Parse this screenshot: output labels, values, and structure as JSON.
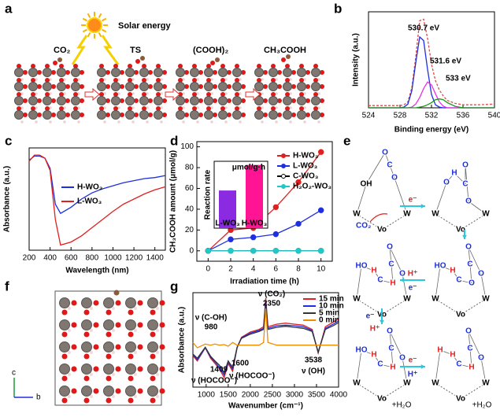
{
  "panel_labels": [
    "a",
    "b",
    "c",
    "d",
    "e",
    "f",
    "g"
  ],
  "scheme": {
    "solar": "Solar energy",
    "stages": [
      "CO₂",
      "TS",
      "(COOH)₂",
      "CH₃COOH"
    ]
  },
  "chart_data": [
    {
      "type": "line",
      "x": [
        524,
        526,
        527,
        528,
        528.5,
        529,
        529.5,
        530,
        530.5,
        531,
        531.5,
        532,
        532.5,
        533,
        533.5,
        534,
        535,
        536,
        538,
        540
      ],
      "series": [
        {
          "color": "#e04848",
          "dash": true,
          "values": [
            3,
            3,
            3,
            3,
            4,
            8,
            27,
            69,
            118,
            120,
            94,
            59,
            37,
            24,
            16,
            10,
            6,
            4,
            4,
            5
          ]
        },
        {
          "color": "#1f2ee0",
          "values": [
            0,
            0,
            0,
            0,
            1,
            5,
            23,
            61,
            96,
            91,
            52,
            18,
            4,
            1,
            0,
            0,
            0,
            0,
            0,
            0
          ]
        },
        {
          "color": "#e632e6",
          "values": [
            0,
            0,
            0,
            0,
            0,
            0,
            1,
            5,
            14,
            26,
            35,
            31,
            19,
            8,
            2,
            0,
            0,
            0,
            0,
            0
          ]
        },
        {
          "color": "#1a9a1a",
          "values": [
            0,
            0,
            0,
            0,
            0,
            0,
            0,
            0,
            1,
            2,
            4,
            7,
            11,
            12,
            11,
            7,
            2,
            0,
            0,
            0
          ]
        }
      ],
      "xlim": [
        524,
        540
      ],
      "xticks": [
        524,
        528,
        532,
        536,
        540
      ],
      "ylim": [
        0,
        130
      ],
      "xlabel": "Binding energy (eV)",
      "ylabel": "Intensity (a.u.)",
      "annotations": [
        "530.7 eV",
        "531.6 eV",
        "533 eV"
      ]
    },
    {
      "type": "line",
      "x": [
        200,
        250,
        300,
        350,
        400,
        450,
        500,
        600,
        700,
        800,
        900,
        1000,
        1100,
        1200,
        1300,
        1400,
        1500
      ],
      "series": [
        {
          "name": "H-WO₃",
          "color": "#1f2ee0",
          "values": [
            0.88,
            0.92,
            0.92,
            0.9,
            0.8,
            0.45,
            0.36,
            0.42,
            0.5,
            0.56,
            0.6,
            0.63,
            0.66,
            0.68,
            0.7,
            0.71,
            0.73
          ]
        },
        {
          "name": "L-WO₃",
          "color": "#e02020",
          "values": [
            0.87,
            0.93,
            0.93,
            0.9,
            0.78,
            0.3,
            0.05,
            0.08,
            0.14,
            0.22,
            0.3,
            0.38,
            0.45,
            0.5,
            0.55,
            0.59,
            0.62
          ]
        }
      ],
      "xlim": [
        200,
        1500
      ],
      "xticks": [
        200,
        400,
        600,
        800,
        1000,
        1200,
        1400
      ],
      "ylim": [
        0,
        1
      ],
      "xlabel": "Wavelength (nm)",
      "ylabel": "Absorbance (a.u.)"
    },
    {
      "type": "line",
      "markers": true,
      "x": [
        0,
        2,
        4,
        6,
        8,
        10
      ],
      "series": [
        {
          "name": "H-WO₃",
          "color": "#e02020",
          "values": [
            0,
            20,
            22,
            42,
            66,
            95
          ]
        },
        {
          "name": "L-WO₃",
          "color": "#1f2ee0",
          "values": [
            0,
            11,
            13,
            16,
            26,
            39
          ]
        },
        {
          "name": "C-WO₃",
          "color": "#000000",
          "values": [
            0,
            0,
            0,
            0,
            0,
            0
          ]
        },
        {
          "name": "H₂O₂-WO₃",
          "color": "#20c8c8",
          "values": [
            0,
            0,
            0,
            0,
            0,
            0
          ]
        }
      ],
      "xlim": [
        -1,
        11
      ],
      "xticks": [
        0,
        2,
        4,
        6,
        8,
        10
      ],
      "ylim": [
        -10,
        105
      ],
      "yticks": [
        0,
        20,
        40,
        60,
        80,
        100
      ],
      "xlabel": "Irradiation time (h)",
      "ylabel": "CH₃COOH amount (μmol/g)"
    },
    {
      "type": "bar",
      "categories": [
        "L-WO₃",
        "H-WO₃"
      ],
      "values": [
        62,
        104
      ],
      "colors": [
        "#8a2be2",
        "#ff1493"
      ],
      "ylim": [
        0,
        110
      ],
      "ylabel": "Reaction rate",
      "unit": "μmol/g·h"
    },
    {
      "type": "line",
      "x": [
        700,
        800,
        980,
        1100,
        1200,
        1300,
        1409,
        1500,
        1600,
        1700,
        1800,
        2000,
        2200,
        2300,
        2350,
        2400,
        2600,
        2800,
        3000,
        3200,
        3400,
        3538,
        3700,
        3900,
        4000
      ],
      "series": [
        {
          "name": "15 min",
          "color": "#e02020",
          "values": [
            -0.2,
            -0.3,
            -0.05,
            -0.25,
            -0.35,
            -0.45,
            -0.62,
            -0.35,
            -0.5,
            -0.05,
            0.15,
            0.25,
            0.3,
            0.35,
            0.9,
            0.35,
            0.4,
            0.42,
            0.4,
            0.38,
            0.3,
            -0.15,
            0.35,
            0.45,
            0.5
          ]
        },
        {
          "name": "10 min",
          "color": "#1f2ee0",
          "values": [
            -0.18,
            -0.28,
            -0.05,
            -0.23,
            -0.32,
            -0.42,
            -0.57,
            -0.32,
            -0.46,
            -0.05,
            0.14,
            0.23,
            0.28,
            0.32,
            0.85,
            0.32,
            0.37,
            0.38,
            0.37,
            0.35,
            0.28,
            -0.14,
            0.32,
            0.41,
            0.46
          ]
        },
        {
          "name": "5 min",
          "color": "#333333",
          "values": [
            -0.17,
            -0.25,
            -0.04,
            -0.21,
            -0.3,
            -0.38,
            -0.53,
            -0.3,
            -0.43,
            -0.04,
            0.13,
            0.21,
            0.26,
            0.3,
            0.8,
            0.3,
            0.34,
            0.36,
            0.34,
            0.32,
            0.26,
            -0.13,
            0.3,
            0.38,
            0.43
          ]
        },
        {
          "name": "0 min",
          "color": "#f08c00",
          "values": [
            0.05,
            -0.05,
            0.02,
            0,
            0.02,
            0,
            0.01,
            -0.02,
            0.05,
            0,
            0,
            0,
            0,
            0.05,
            0.7,
            0.05,
            0,
            0,
            0,
            0,
            0,
            0,
            0,
            0,
            0
          ]
        }
      ],
      "xlim": [
        700,
        4000
      ],
      "xticks": [
        1000,
        1500,
        2000,
        2500,
        3000,
        3500,
        4000
      ],
      "ylim": [
        -0.8,
        1
      ],
      "xlabel": "Wavenumber (cm⁻¹)",
      "ylabel": "Absorbance (a.u.)",
      "annotations": [
        "ν (C-OH)",
        "980",
        "1409",
        "ν (HOCOO⁻)",
        "1600",
        "ν (HOCOO⁻)",
        "ν (CO₂)",
        "2350",
        "3538",
        "ν (OH)"
      ]
    }
  ],
  "mechanism": {
    "co2": "CO₂",
    "steps": [
      "e⁻",
      "H⁺",
      "e⁻",
      "e⁻",
      "H⁺",
      "e⁻",
      "H⁺"
    ],
    "water": [
      "+H₂O",
      "+H₂O"
    ],
    "structures": [
      {
        "atoms": [
          "W",
          "W",
          "Vo",
          "OH",
          "O",
          "C",
          "O"
        ]
      },
      {
        "atoms": [
          "W",
          "W",
          "Vo",
          "O",
          "H",
          "C",
          "O",
          "O"
        ]
      },
      {
        "atoms": [
          "W",
          "W",
          "Vo",
          "HO",
          "H",
          "C",
          "O",
          "C",
          "O",
          "O"
        ]
      },
      {
        "atoms": [
          "W",
          "W",
          "Vo",
          "HO",
          "H",
          "C",
          "H",
          "C",
          "O",
          "O"
        ]
      },
      {
        "atoms": [
          "W",
          "W",
          "Vo",
          "HO",
          "H",
          "C",
          "H",
          "C",
          "O",
          "O"
        ]
      },
      {
        "atoms": [
          "W",
          "W",
          "Vo",
          "H",
          "H",
          "C",
          "H",
          "C",
          "O",
          "O"
        ]
      }
    ]
  },
  "crystal_axes": [
    "c",
    "b"
  ]
}
